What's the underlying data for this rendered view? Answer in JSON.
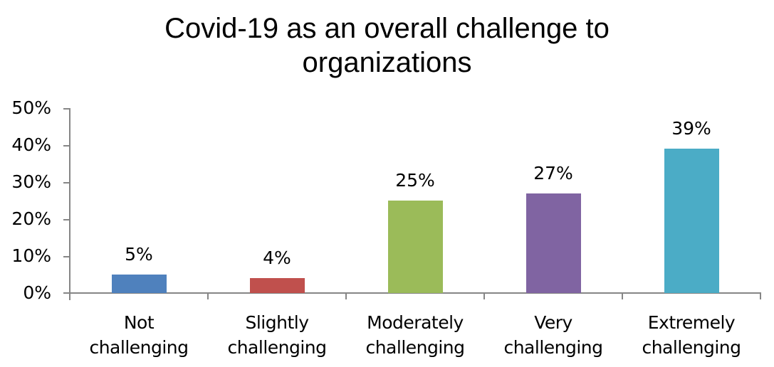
{
  "chart_data": {
    "type": "bar",
    "title": "Covid-19 as an overall challenge to organizations",
    "title_lines": [
      "Covid-19 as an overall challenge to",
      "organizations"
    ],
    "categories": [
      "Not challenging",
      "Slightly challenging",
      "Moderately challenging",
      "Very challenging",
      "Extremely challenging"
    ],
    "category_lines": [
      [
        "Not",
        "challenging"
      ],
      [
        "Slightly",
        "challenging"
      ],
      [
        "Moderately",
        "challenging"
      ],
      [
        "Very",
        "challenging"
      ],
      [
        "Extremely",
        "challenging"
      ]
    ],
    "values": [
      5,
      4,
      25,
      27,
      39
    ],
    "data_labels": [
      "5%",
      "4%",
      "25%",
      "27%",
      "39%"
    ],
    "colors": [
      "#4f81bd",
      "#c0504d",
      "#9bbb59",
      "#8064a2",
      "#4bacc6"
    ],
    "xlabel": "",
    "ylabel": "",
    "ylim": [
      0,
      50
    ],
    "yticks": [
      "0%",
      "10%",
      "20%",
      "30%",
      "40%",
      "50%"
    ],
    "grid": false,
    "legend": "none"
  }
}
